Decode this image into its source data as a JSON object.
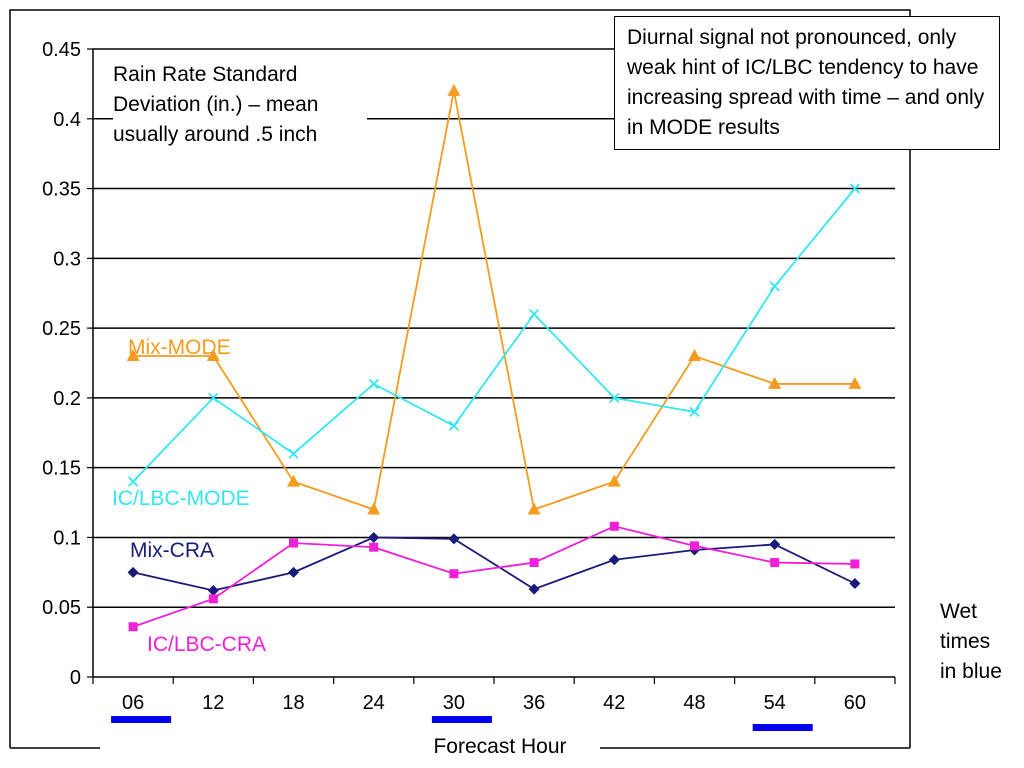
{
  "chart_data": {
    "type": "line",
    "title": "",
    "xlabel": "Forecast Hour",
    "ylabel": "",
    "categories": [
      "06",
      "12",
      "18",
      "24",
      "30",
      "36",
      "42",
      "48",
      "54",
      "60"
    ],
    "y_ticks": [
      "0",
      "0.05",
      "0.1",
      "0.15",
      "0.2",
      "0.25",
      "0.3",
      "0.35",
      "0.4",
      "0.45"
    ],
    "ylim": [
      0,
      0.45
    ],
    "grid": "horizontal",
    "series": [
      {
        "name": "Mix-MODE",
        "color": "#F39C1F",
        "marker": "triangle",
        "values": [
          0.23,
          0.23,
          0.14,
          0.12,
          0.42,
          0.12,
          0.14,
          0.23,
          0.21,
          0.21
        ]
      },
      {
        "name": "IC/LBC-MODE",
        "color": "#33E6F0",
        "marker": "x",
        "values": [
          0.14,
          0.2,
          0.16,
          0.21,
          0.18,
          0.26,
          0.2,
          0.19,
          0.28,
          0.35
        ]
      },
      {
        "name": "Mix-CRA",
        "color": "#1A1A7A",
        "marker": "diamond",
        "values": [
          0.075,
          0.062,
          0.075,
          0.1,
          0.099,
          0.063,
          0.084,
          0.091,
          0.095,
          0.067
        ]
      },
      {
        "name": "IC/LBC-CRA",
        "color": "#F020D8",
        "marker": "square",
        "values": [
          0.036,
          0.056,
          0.096,
          0.093,
          0.074,
          0.082,
          0.108,
          0.094,
          0.082,
          0.081
        ]
      }
    ],
    "wet_times": [
      "06",
      "30",
      "54"
    ],
    "wet_color": "#0000EE",
    "annotations": {
      "rain_note": "Rain Rate Standard Deviation (in.) – mean usually around .5 inch",
      "diurnal_note": "Diurnal signal not pronounced, only weak hint of IC/LBC tendency to have increasing spread with time – and only in MODE results",
      "wet_note": "Wet times in blue"
    }
  }
}
